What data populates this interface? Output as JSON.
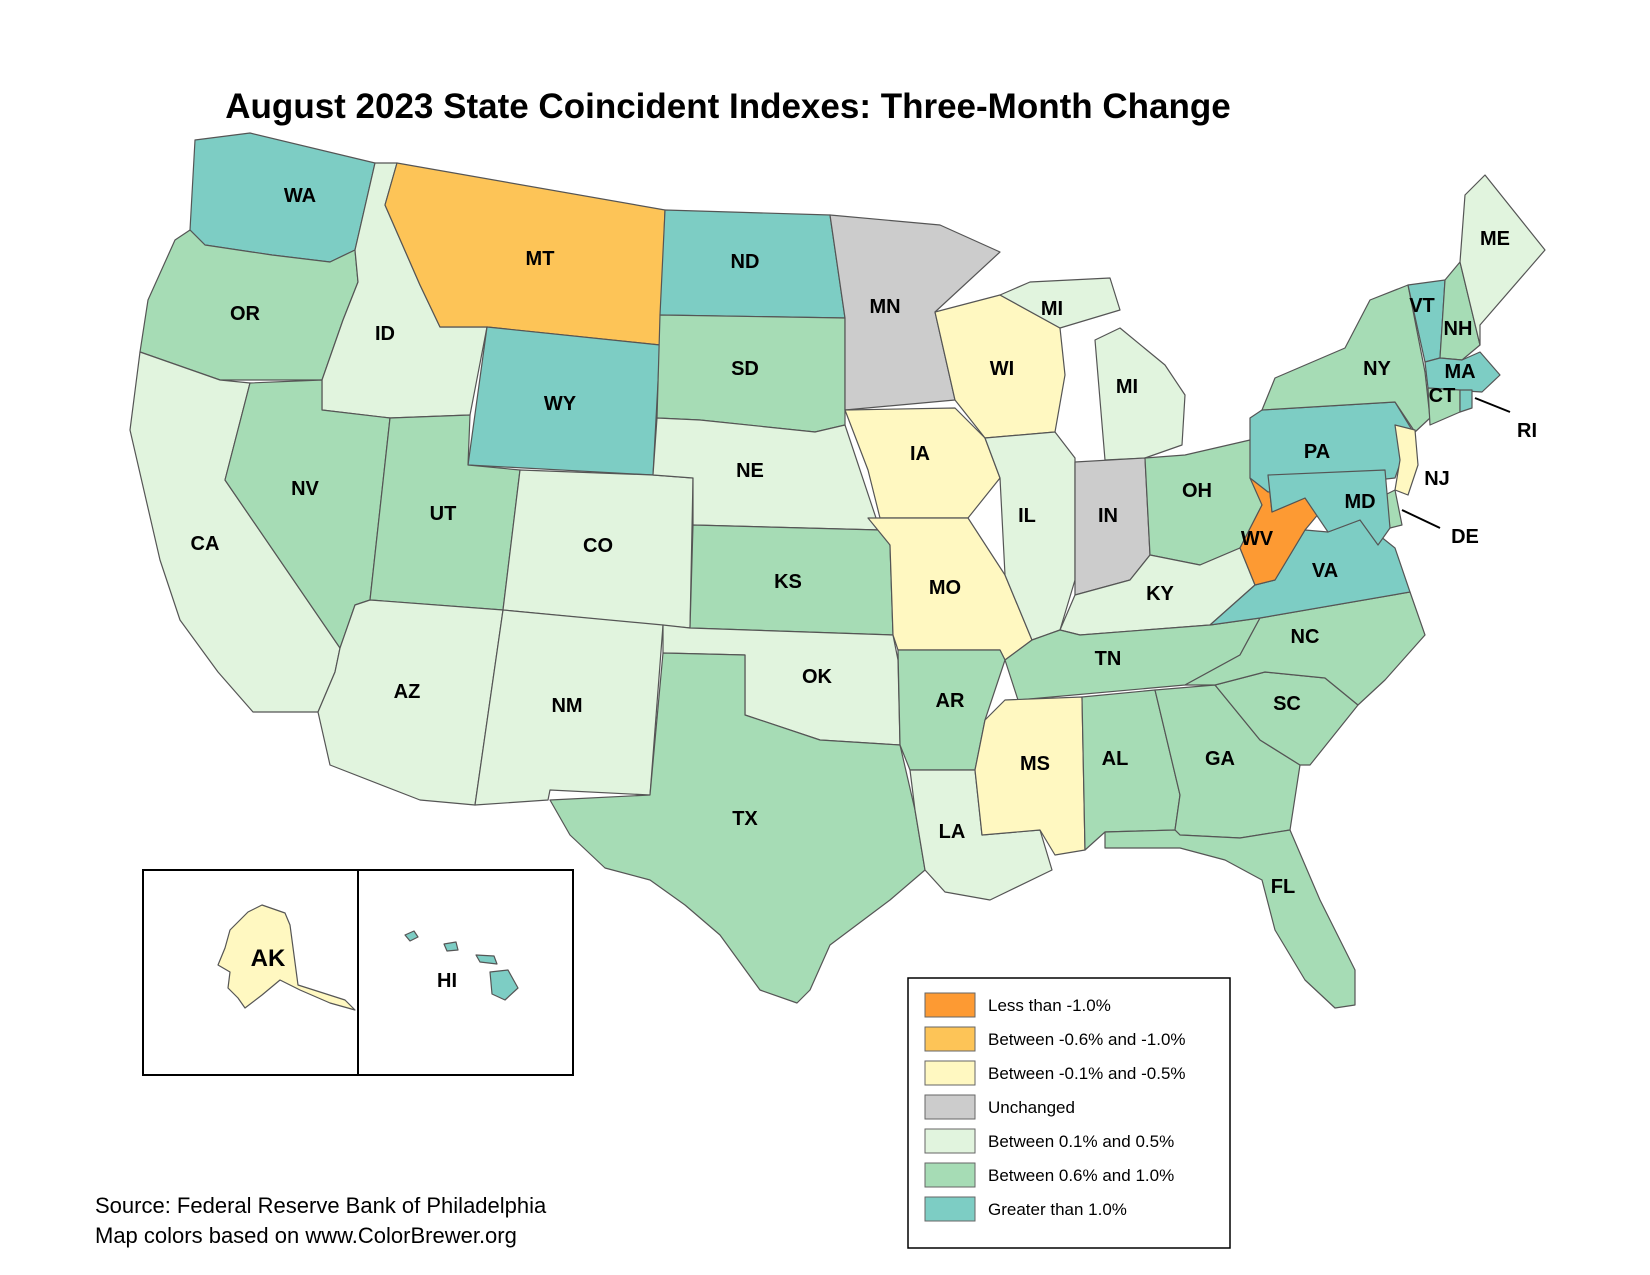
{
  "title": "August 2023 State Coincident Indexes: Three-Month Change",
  "source_lines": [
    "Source: Federal Reserve Bank of Philadelphia",
    "Map colors based on www.ColorBrewer.org"
  ],
  "legend": [
    {
      "key": "lt_m1",
      "label": "Less than -1.0%",
      "color": "#fd9a33"
    },
    {
      "key": "m06_m1",
      "label": "Between -0.6% and -1.0%",
      "color": "#fdc457"
    },
    {
      "key": "m01_m05",
      "label": "Between -0.1% and -0.5%",
      "color": "#fff8c1"
    },
    {
      "key": "zero",
      "label": "Unchanged",
      "color": "#cccccc"
    },
    {
      "key": "p01_p05",
      "label": "Between 0.1% and 0.5%",
      "color": "#e1f4de"
    },
    {
      "key": "p06_p1",
      "label": "Between 0.6% and 1.0%",
      "color": "#a6dcb5"
    },
    {
      "key": "gt_p1",
      "label": "Greater than 1.0%",
      "color": "#7dcdc4"
    }
  ],
  "states": {
    "WA": "gt_p1",
    "OR": "p06_p1",
    "CA": "p01_p05",
    "ID": "p01_p05",
    "NV": "p06_p1",
    "MT": "m06_m1",
    "WY": "gt_p1",
    "UT": "p06_p1",
    "AZ": "p01_p05",
    "CO": "p01_p05",
    "NM": "p01_p05",
    "ND": "gt_p1",
    "SD": "p06_p1",
    "NE": "p01_p05",
    "KS": "p06_p1",
    "OK": "p01_p05",
    "TX": "p06_p1",
    "MN": "zero",
    "IA": "m01_m05",
    "MO": "m01_m05",
    "AR": "p06_p1",
    "LA": "p01_p05",
    "WI": "m01_m05",
    "IL": "p01_p05",
    "MI": "p01_p05",
    "IN": "zero",
    "OH": "p06_p1",
    "KY": "p01_p05",
    "TN": "p06_p1",
    "MS": "m01_m05",
    "AL": "p06_p1",
    "GA": "p06_p1",
    "FL": "p06_p1",
    "SC": "p06_p1",
    "NC": "p06_p1",
    "VA": "gt_p1",
    "WV": "lt_m1",
    "PA": "gt_p1",
    "NY": "p06_p1",
    "VT": "gt_p1",
    "NH": "p06_p1",
    "ME": "p01_p05",
    "MA": "gt_p1",
    "CT": "p06_p1",
    "RI": "gt_p1",
    "NJ": "m01_m05",
    "DE": "p06_p1",
    "MD": "gt_p1",
    "AK": "m01_m05",
    "HI": "gt_p1"
  },
  "labels": {
    "WA": "WA",
    "OR": "OR",
    "CA": "CA",
    "ID": "ID",
    "NV": "NV",
    "MT": "MT",
    "WY": "WY",
    "UT": "UT",
    "AZ": "AZ",
    "CO": "CO",
    "NM": "NM",
    "ND": "ND",
    "SD": "SD",
    "NE": "NE",
    "KS": "KS",
    "OK": "OK",
    "TX": "TX",
    "MN": "MN",
    "IA": "IA",
    "MO": "MO",
    "AR": "AR",
    "LA": "LA",
    "WI": "WI",
    "IL": "IL",
    "MI_UP": "MI",
    "MI": "MI",
    "IN": "IN",
    "OH": "OH",
    "KY": "KY",
    "TN": "TN",
    "MS": "MS",
    "AL": "AL",
    "GA": "GA",
    "FL": "FL",
    "SC": "SC",
    "NC": "NC",
    "VA": "VA",
    "WV": "WV",
    "PA": "PA",
    "NY": "NY",
    "VT": "VT",
    "NH": "NH",
    "ME": "ME",
    "MA": "MA",
    "CT": "CT",
    "RI": "RI",
    "NJ": "NJ",
    "DE": "DE",
    "MD": "MD",
    "AK": "AK",
    "HI": "HI"
  }
}
